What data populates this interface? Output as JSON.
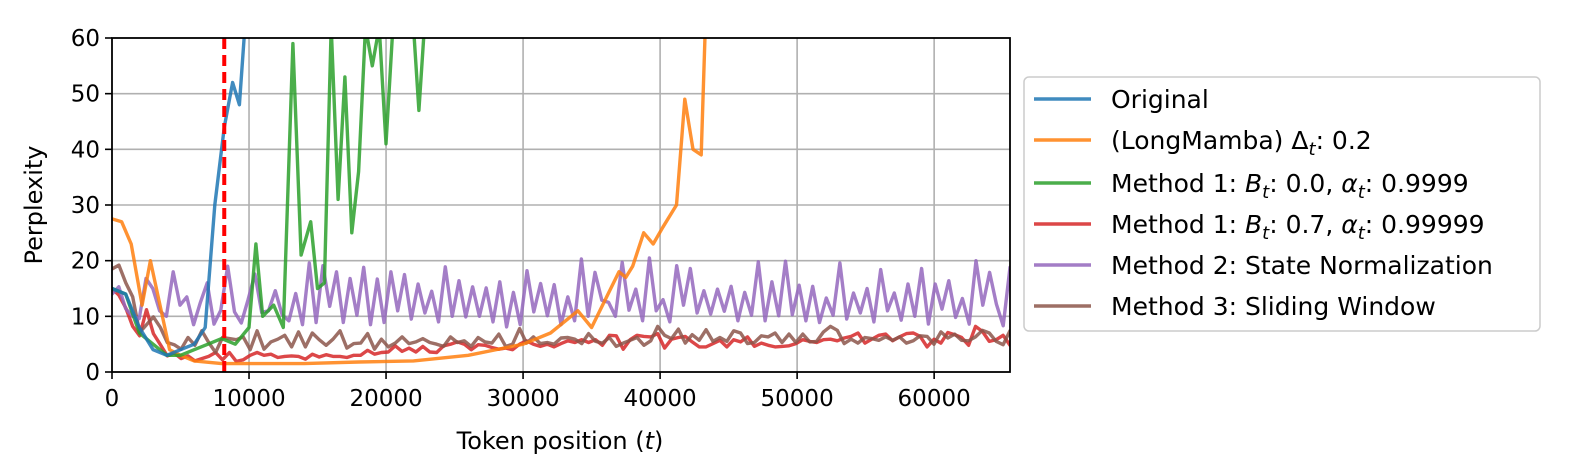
{
  "chart_data": {
    "type": "line",
    "xlabel": "Token position (t)",
    "ylabel": "Perplexity",
    "xlim": [
      0,
      65536
    ],
    "ylim": [
      0,
      60
    ],
    "xticks": [
      0,
      10000,
      20000,
      30000,
      40000,
      50000,
      60000
    ],
    "yticks": [
      0,
      10,
      20,
      30,
      40,
      50,
      60
    ],
    "grid": true,
    "legend_position": "outside-right",
    "reference_line": {
      "x": 8192,
      "color": "#ff0000",
      "style": "dashed"
    },
    "series": [
      {
        "name": "Original",
        "color": "#1f77b4",
        "x": [
          0,
          1000,
          2000,
          3000,
          4000,
          5000,
          6000,
          6800,
          7500,
          8192,
          8800,
          9300,
          9700
        ],
        "y": [
          15,
          14,
          8,
          4,
          3,
          4,
          5,
          8,
          30,
          44,
          52,
          48,
          62
        ]
      },
      {
        "name": "(LongMamba) Δt: 0.2",
        "color": "#ff7f0e",
        "x": [
          0,
          700,
          1400,
          2200,
          2800,
          3500,
          4200,
          5000,
          6000,
          8000,
          10000,
          14000,
          18000,
          22000,
          26000,
          30000,
          32000,
          34000,
          35000,
          36000,
          37000,
          37500,
          38000,
          38800,
          39500,
          40200,
          41200,
          41800,
          42400,
          43000,
          43300
        ],
        "y": [
          27.5,
          27,
          23,
          12,
          20,
          12,
          4,
          3,
          2,
          1.5,
          1.5,
          1.5,
          1.8,
          2,
          3,
          5,
          7,
          11,
          8,
          13,
          18,
          17,
          19,
          25,
          23,
          26,
          30,
          49,
          40,
          39,
          62
        ]
      },
      {
        "name": "Method 1: Bt: 0.0, αt: 0.9999",
        "color": "#2ca02c",
        "x": [
          0,
          1000,
          2000,
          3000,
          4000,
          5000,
          6000,
          7000,
          8000,
          9000,
          10000,
          10500,
          11000,
          11800,
          12500,
          13200,
          13800,
          14500,
          15000,
          15500,
          16000,
          16500,
          17000,
          17500,
          18000,
          18500,
          19000,
          19500,
          20000,
          20500,
          21000,
          21500,
          22000,
          22400,
          22800
        ],
        "y": [
          15,
          14,
          7,
          5,
          3,
          3,
          4,
          5,
          6,
          5,
          8,
          23,
          10,
          12,
          8,
          59,
          21,
          27,
          15,
          16,
          62,
          31,
          53,
          25,
          36,
          62,
          55,
          62,
          41,
          62,
          62,
          62,
          62,
          47,
          62
        ]
      },
      {
        "name": "Method 1: Bt: 0.7, αt: 0.99999",
        "color": "#d62728",
        "values": [
          15.0,
          13.8,
          11.5,
          8.2,
          6.5,
          11.2,
          6.9,
          4.9,
          2.9,
          3.4,
          2.4,
          2.9,
          2.0,
          2.4,
          2.8,
          3.5,
          2.2,
          3.5,
          1.9,
          2.2,
          3.0,
          3.5,
          3.0,
          3.2,
          2.6,
          2.8,
          2.9,
          2.8,
          2.3,
          3.2,
          2.7,
          3.1,
          2.8,
          2.8,
          2.6,
          3.0,
          3.0,
          3.9,
          3.2,
          3.5,
          3.6,
          4.7,
          3.7,
          4.3,
          3.6,
          4.6,
          3.6,
          3.5,
          4.7,
          5.0,
          5.4,
          5.0,
          4.0,
          4.9,
          4.8,
          4.4,
          4.1,
          4.3,
          4.0,
          5.0,
          5.6,
          5.0,
          4.6,
          5.0,
          4.5,
          5.1,
          5.6,
          5.3,
          5.8,
          5.3,
          5.8,
          4.8,
          6.6,
          6.5,
          4.1,
          5.8,
          6.6,
          6.4,
          6.3,
          6.9,
          4.3,
          5.9,
          6.2,
          6.4,
          5.4,
          4.5,
          4.5,
          5.1,
          5.7,
          4.5,
          5.8,
          5.4,
          6.3,
          4.6,
          5.2,
          4.8,
          4.5,
          4.6,
          4.7,
          5.1,
          5.8,
          5.5,
          5.3,
          5.8,
          5.9,
          5.6,
          6.1,
          6.4,
          7.0,
          5.2,
          5.9,
          6.6,
          6.8,
          5.6,
          6.3,
          6.9,
          7.0,
          6.4,
          4.5,
          5.9,
          5.2,
          7.1,
          6.7,
          6.2,
          4.8,
          8.2,
          7.3,
          5.5,
          5.8,
          6.6,
          4.8
        ]
      },
      {
        "name": "Method 2: State Normalization",
        "color": "#9467bd",
        "values": [
          14.0,
          15.3,
          11.4,
          10.0,
          9.6,
          16.8,
          15.0,
          11.0,
          10.0,
          18.0,
          12.0,
          13.5,
          8.5,
          12.5,
          16.0,
          8.6,
          11.1,
          19.0,
          10.8,
          8.8,
          13.0,
          17.6,
          10.7,
          11.0,
          14.6,
          10.3,
          9.2,
          14.1,
          8.5,
          19.6,
          8.9,
          19.1,
          11.8,
          18.0,
          8.9,
          16.8,
          10.2,
          18.8,
          8.5,
          16.7,
          8.9,
          18.0,
          11.0,
          17.5,
          9.5,
          15.8,
          10.6,
          14.5,
          9.0,
          18.9,
          10.0,
          16.4,
          9.9,
          15.3,
          10.0,
          15.1,
          9.0,
          16.2,
          8.1,
          14.3,
          8.5,
          18.2,
          10.8,
          15.9,
          10.1,
          15.7,
          8.5,
          13.5,
          9.2,
          20.3,
          10.0,
          17.9,
          12.9,
          12.5,
          10.0,
          19.7,
          11.1,
          14.9,
          9.2,
          20.5,
          11.0,
          13.0,
          9.0,
          19.1,
          12.0,
          18.6,
          10.6,
          14.6,
          10.4,
          14.9,
          10.9,
          15.4,
          9.2,
          14.3,
          10.2,
          19.8,
          9.2,
          16.2,
          10.1,
          19.9,
          10.3,
          15.6,
          9.2,
          15.4,
          8.9,
          13.3,
          10.2,
          19.6,
          9.5,
          14.2,
          10.6,
          15.0,
          9.0,
          18.4,
          11.0,
          14.2,
          9.3,
          15.8,
          10.0,
          18.6,
          8.6,
          15.8,
          11.3,
          16.4,
          9.8,
          13.2,
          8.6,
          20.0,
          12.0,
          17.9,
          12.2,
          8.3,
          18.8
        ]
      },
      {
        "name": "Method 3: Sliding Window",
        "color": "#8c564b",
        "values": [
          18.5,
          19.2,
          16.0,
          13.5,
          7.1,
          8.5,
          9.9,
          8.0,
          5.3,
          4.9,
          4.1,
          6.2,
          4.8,
          7.4,
          5.3,
          3.5,
          6.2,
          6.0,
          5.8,
          6.3,
          4.0,
          7.4,
          4.1,
          5.4,
          5.9,
          6.6,
          4.5,
          7.2,
          4.5,
          7.0,
          5.8,
          4.8,
          5.9,
          7.4,
          4.3,
          5.1,
          5.2,
          6.9,
          4.1,
          5.9,
          4.5,
          5.2,
          6.3,
          5.1,
          5.4,
          6.0,
          5.3,
          5.0,
          4.6,
          6.3,
          5.3,
          5.6,
          4.6,
          6.2,
          5.4,
          5.2,
          6.8,
          4.6,
          5.0,
          7.8,
          5.2,
          6.3,
          5.1,
          5.3,
          5.0,
          6.1,
          6.2,
          5.9,
          5.1,
          6.9,
          5.5,
          5.2,
          6.2,
          4.6,
          5.2,
          5.7,
          6.2,
          4.8,
          5.6,
          8.2,
          6.6,
          6.0,
          7.7,
          5.2,
          6.7,
          5.7,
          7.6,
          5.5,
          6.2,
          5.5,
          7.4,
          7.0,
          5.1,
          5.3,
          6.5,
          6.3,
          7.0,
          5.3,
          6.8,
          5.3,
          6.8,
          5.4,
          5.5,
          7.2,
          8.2,
          7.5,
          5.1,
          5.9,
          5.2,
          6.2,
          6.0,
          5.7,
          6.3,
          5.7,
          6.3,
          5.2,
          5.6,
          6.5,
          6.4,
          5.0,
          7.2,
          6.1,
          6.8,
          5.7,
          5.6,
          6.3,
          7.5,
          7.0,
          5.5,
          4.9,
          7.4
        ]
      }
    ]
  }
}
